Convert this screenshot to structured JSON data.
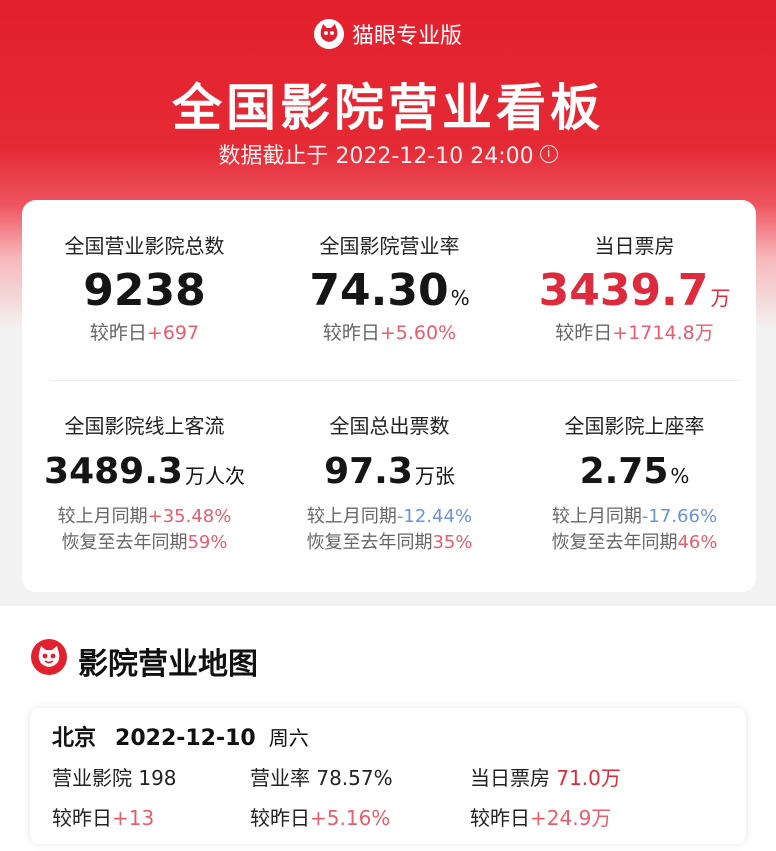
{
  "header": {
    "brand": "猫眼专业版",
    "title": "全国影院营业看板",
    "data_time": "数据截止于 2022-12-10 24:00"
  },
  "summary": {
    "cinemas": {
      "label": "全国营业影院总数",
      "value": "9238",
      "cmp_label": "较昨日",
      "cmp_value": "+697"
    },
    "rate": {
      "label": "全国影院营业率",
      "value": "74.30",
      "unit": "%",
      "cmp_label": "较昨日",
      "cmp_value": "+5.60%"
    },
    "boxoffice": {
      "label": "当日票房",
      "value": "3439.7",
      "unit": "万",
      "cmp_label": "较昨日",
      "cmp_value": "+1714.8万"
    },
    "traffic": {
      "label": "全国影院线上客流",
      "value": "3489.3",
      "unit": "万人次",
      "cmp1_label": "较上月同期",
      "cmp1_value": "+35.48%",
      "cmp2_label": "恢复至去年同期",
      "cmp2_value": "59%"
    },
    "tickets": {
      "label": "全国总出票数",
      "value": "97.3",
      "unit": "万张",
      "cmp1_label": "较上月同期",
      "cmp1_value": "-12.44%",
      "cmp2_label": "恢复至去年同期",
      "cmp2_value": "35%"
    },
    "occupancy": {
      "label": "全国影院上座率",
      "value": "2.75",
      "unit": "%",
      "cmp1_label": "较上月同期",
      "cmp1_value": "-17.66%",
      "cmp2_label": "恢复至去年同期",
      "cmp2_value": "46%"
    }
  },
  "map_section": {
    "title": "影院营业地图",
    "city": "北京",
    "date": "2022-12-10",
    "weekday": "周六",
    "cinemas_label": "营业影院",
    "cinemas_value": "198",
    "cinemas_cmp_label": "较昨日",
    "cinemas_cmp_value": "+13",
    "rate_label": "营业率",
    "rate_value": "78.57%",
    "rate_cmp_label": "较昨日",
    "rate_cmp_value": "+5.16%",
    "box_label": "当日票房",
    "box_value": "71.0万",
    "box_cmp_label": "较昨日",
    "box_cmp_value": "+24.9万"
  },
  "colors": {
    "brand_red": "#e3202d",
    "value_red": "#dd2a3c",
    "up": "#e85d6e",
    "down": "#6b93d6"
  }
}
